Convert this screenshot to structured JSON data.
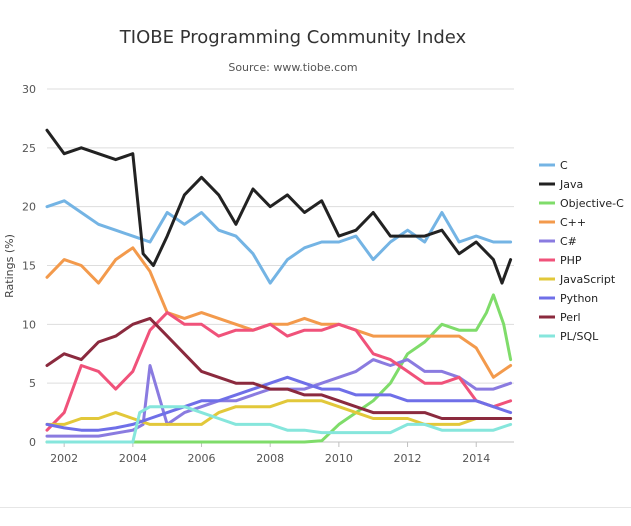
{
  "chart_data": {
    "type": "line",
    "title": "TIOBE Programming Community Index",
    "subtitle": "Source: www.tiobe.com",
    "xlabel": "",
    "ylabel": "Ratings (%)",
    "xlim": [
      2001.5,
      2015.1
    ],
    "ylim": [
      0,
      30
    ],
    "x_ticks": [
      "2002",
      "2004",
      "2006",
      "2008",
      "2010",
      "2012",
      "2014"
    ],
    "y_ticks": [
      "0",
      "5",
      "10",
      "15",
      "20",
      "25",
      "30"
    ],
    "grid": "horizontal",
    "legend_position": "right",
    "series": [
      {
        "name": "C",
        "color": "#74b4e4",
        "x": [
          2001.5,
          2002,
          2002.5,
          2003,
          2003.5,
          2004,
          2004.5,
          2005,
          2005.5,
          2006,
          2006.5,
          2007,
          2007.5,
          2008,
          2008.5,
          2009,
          2009.5,
          2010,
          2010.5,
          2011,
          2011.5,
          2012,
          2012.5,
          2013,
          2013.5,
          2014,
          2014.5,
          2015
        ],
        "values": [
          20,
          20.5,
          19.5,
          18.5,
          18,
          17.5,
          17,
          19.5,
          18.5,
          19.5,
          18,
          17.5,
          16,
          13.5,
          15.5,
          16.5,
          17,
          17,
          17.5,
          15.5,
          17,
          18,
          17,
          19.5,
          17,
          17.5,
          17,
          17
        ]
      },
      {
        "name": "Java",
        "color": "#222222",
        "x": [
          2001.5,
          2002,
          2002.5,
          2003,
          2003.5,
          2004,
          2004.3,
          2004.6,
          2005,
          2005.5,
          2006,
          2006.5,
          2007,
          2007.5,
          2008,
          2008.5,
          2009,
          2009.5,
          2010,
          2010.5,
          2011,
          2011.5,
          2012,
          2012.5,
          2013,
          2013.5,
          2014,
          2014.5,
          2014.75,
          2015
        ],
        "values": [
          26.5,
          24.5,
          25,
          24.5,
          24,
          24.5,
          16,
          15,
          17.5,
          21,
          22.5,
          21,
          18.5,
          21.5,
          20,
          21,
          19.5,
          20.5,
          17.5,
          18,
          19.5,
          17.5,
          17.5,
          17.5,
          18,
          16,
          17,
          15.5,
          13.5,
          15.5
        ]
      },
      {
        "name": "Objective-C",
        "color": "#7fdc6a",
        "x": [
          2001.5,
          2003,
          2005,
          2007,
          2009,
          2009.5,
          2010,
          2010.5,
          2011,
          2011.5,
          2012,
          2012.5,
          2013,
          2013.5,
          2014,
          2014.3,
          2014.5,
          2014.8,
          2015
        ],
        "values": [
          0,
          0,
          0,
          0,
          0,
          0.1,
          1.5,
          2.5,
          3.5,
          5,
          7.5,
          8.5,
          10,
          9.5,
          9.5,
          11,
          12.5,
          10,
          7
        ]
      },
      {
        "name": "C++",
        "color": "#f39a4c",
        "x": [
          2001.5,
          2002,
          2002.5,
          2003,
          2003.5,
          2004,
          2004.5,
          2005,
          2005.5,
          2006,
          2006.5,
          2007,
          2007.5,
          2008,
          2008.5,
          2009,
          2009.5,
          2010,
          2010.5,
          2011,
          2011.5,
          2012,
          2012.5,
          2013,
          2013.5,
          2014,
          2014.5,
          2015
        ],
        "values": [
          14,
          15.5,
          15,
          13.5,
          15.5,
          16.5,
          14.5,
          11,
          10.5,
          11,
          10.5,
          10,
          9.5,
          10,
          10,
          10.5,
          10,
          10,
          9.5,
          9,
          9,
          9,
          9,
          9,
          9,
          8,
          5.5,
          6.5
        ]
      },
      {
        "name": "C#",
        "color": "#8a7be0",
        "x": [
          2001.5,
          2002,
          2003,
          2004,
          2004.3,
          2004.5,
          2005,
          2005.5,
          2006,
          2006.5,
          2007,
          2007.5,
          2008,
          2008.5,
          2009,
          2009.5,
          2010,
          2010.5,
          2011,
          2011.5,
          2012,
          2012.5,
          2013,
          2013.5,
          2014,
          2014.5,
          2015
        ],
        "values": [
          0.5,
          0.5,
          0.5,
          1,
          1.5,
          6.5,
          1.5,
          2.5,
          3,
          3.5,
          3.5,
          4,
          4.5,
          4.5,
          4.5,
          5,
          5.5,
          6,
          7,
          6.5,
          7,
          6,
          6,
          5.5,
          4.5,
          4.5,
          5
        ]
      },
      {
        "name": "PHP",
        "color": "#f0527a",
        "x": [
          2001.5,
          2002,
          2002.5,
          2003,
          2003.5,
          2004,
          2004.5,
          2005,
          2005.5,
          2006,
          2006.5,
          2007,
          2007.5,
          2008,
          2008.5,
          2009,
          2009.5,
          2010,
          2010.5,
          2011,
          2011.5,
          2012,
          2012.5,
          2013,
          2013.5,
          2014,
          2014.5,
          2015
        ],
        "values": [
          1,
          2.5,
          6.5,
          6,
          4.5,
          6,
          9.5,
          11,
          10,
          10,
          9,
          9.5,
          9.5,
          10,
          9,
          9.5,
          9.5,
          10,
          9.5,
          7.5,
          7,
          6,
          5,
          5,
          5.5,
          3.5,
          3,
          3.5
        ]
      },
      {
        "name": "JavaScript",
        "color": "#e2c83a",
        "x": [
          2001.5,
          2002,
          2002.5,
          2003,
          2003.5,
          2004,
          2004.5,
          2005,
          2005.5,
          2006,
          2006.5,
          2007,
          2007.5,
          2008,
          2008.5,
          2009,
          2009.5,
          2010,
          2010.5,
          2011,
          2011.5,
          2012,
          2012.5,
          2013,
          2013.5,
          2014,
          2014.5,
          2015
        ],
        "values": [
          1.5,
          1.5,
          2,
          2,
          2.5,
          2,
          1.5,
          1.5,
          1.5,
          1.5,
          2.5,
          3,
          3,
          3,
          3.5,
          3.5,
          3.5,
          3,
          2.5,
          2,
          2,
          2,
          1.5,
          1.5,
          1.5,
          2,
          2,
          2
        ]
      },
      {
        "name": "Python",
        "color": "#6f6fe8",
        "x": [
          2001.5,
          2002,
          2002.5,
          2003,
          2003.5,
          2004,
          2004.5,
          2005,
          2005.5,
          2006,
          2006.5,
          2007,
          2007.5,
          2008,
          2008.5,
          2009,
          2009.5,
          2010,
          2010.5,
          2011,
          2011.5,
          2012,
          2012.5,
          2013,
          2013.5,
          2014,
          2014.5,
          2015
        ],
        "values": [
          1.5,
          1.2,
          1,
          1,
          1.2,
          1.5,
          2,
          2.5,
          3,
          3.5,
          3.5,
          4,
          4.5,
          5,
          5.5,
          5,
          4.5,
          4.5,
          4,
          4,
          4,
          3.5,
          3.5,
          3.5,
          3.5,
          3.5,
          3,
          2.5
        ]
      },
      {
        "name": "Perl",
        "color": "#8b2a3e",
        "x": [
          2001.5,
          2002,
          2002.5,
          2003,
          2003.5,
          2004,
          2004.5,
          2005,
          2005.5,
          2006,
          2006.5,
          2007,
          2007.5,
          2008,
          2008.5,
          2009,
          2009.5,
          2010,
          2010.5,
          2011,
          2011.5,
          2012,
          2012.5,
          2013,
          2013.5,
          2014,
          2014.5,
          2015
        ],
        "values": [
          6.5,
          7.5,
          7,
          8.5,
          9,
          10,
          10.5,
          9,
          7.5,
          6,
          5.5,
          5,
          5,
          4.5,
          4.5,
          4,
          4,
          3.5,
          3,
          2.5,
          2.5,
          2.5,
          2.5,
          2,
          2,
          2,
          2,
          2
        ]
      },
      {
        "name": "PL/SQL",
        "color": "#86e6dc",
        "x": [
          2001.5,
          2003,
          2004,
          2004.2,
          2004.5,
          2005,
          2005.5,
          2006,
          2006.5,
          2007,
          2007.5,
          2008,
          2008.5,
          2009,
          2009.5,
          2010,
          2010.5,
          2011,
          2011.5,
          2012,
          2012.5,
          2013,
          2013.5,
          2014,
          2014.5,
          2015
        ],
        "values": [
          0,
          0,
          0,
          2.5,
          3,
          3,
          3,
          2.5,
          2,
          1.5,
          1.5,
          1.5,
          1,
          1,
          0.8,
          0.8,
          0.8,
          0.8,
          0.8,
          1.5,
          1.5,
          1,
          1,
          1,
          1,
          1.5
        ]
      }
    ]
  }
}
